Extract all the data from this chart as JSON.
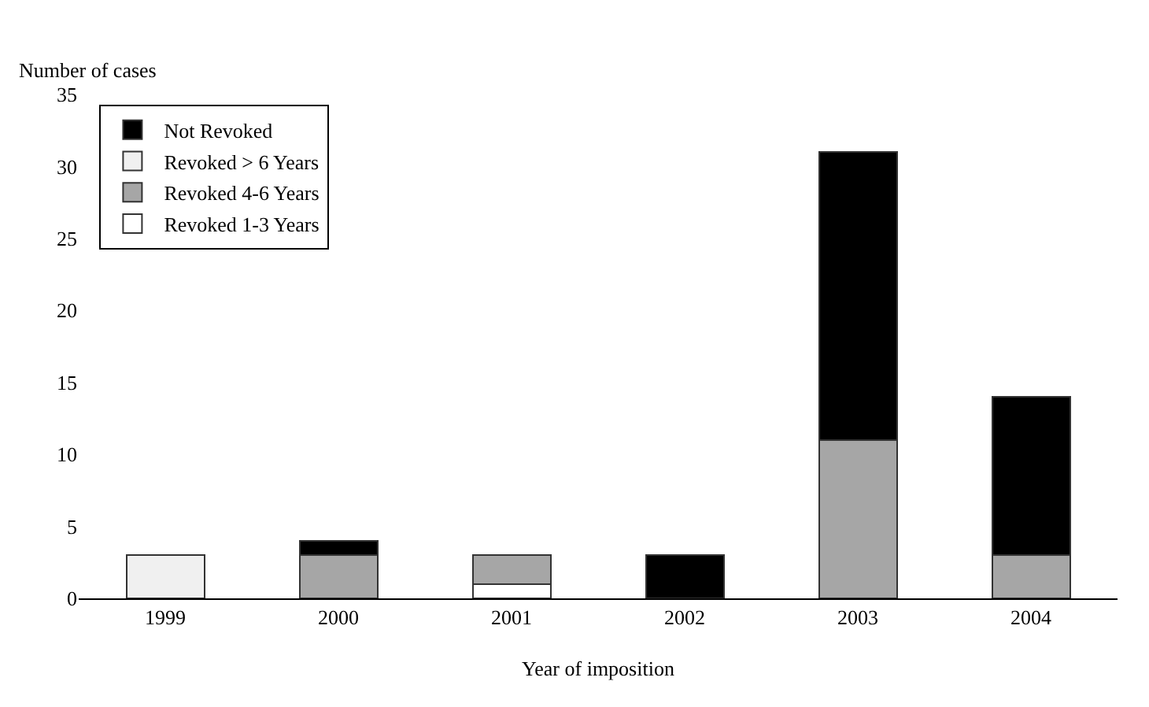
{
  "chart_data": {
    "type": "bar",
    "stacked": true,
    "xlabel": "Year of imposition",
    "ylabel": "Number of cases",
    "categories": [
      "1999",
      "2000",
      "2001",
      "2002",
      "2003",
      "2004"
    ],
    "series": [
      {
        "name": "Revoked 1-3 Years",
        "color": "#ffffff",
        "values": [
          0,
          0,
          1,
          0,
          0,
          0
        ]
      },
      {
        "name": "Revoked 4-6 Years",
        "color": "#a6a6a6",
        "values": [
          0,
          3,
          2,
          0,
          11,
          3
        ]
      },
      {
        "name": "Revoked > 6 Years",
        "color": "#f0f0f0",
        "values": [
          3,
          0,
          0,
          0,
          0,
          0
        ]
      },
      {
        "name": "Not Revoked",
        "color": "#000000",
        "values": [
          0,
          1,
          0,
          3,
          20,
          11
        ]
      }
    ],
    "ylim": [
      0,
      35
    ],
    "yticks": [
      0,
      5,
      10,
      15,
      20,
      25,
      30,
      35
    ],
    "grid": false,
    "legend": "top left"
  }
}
